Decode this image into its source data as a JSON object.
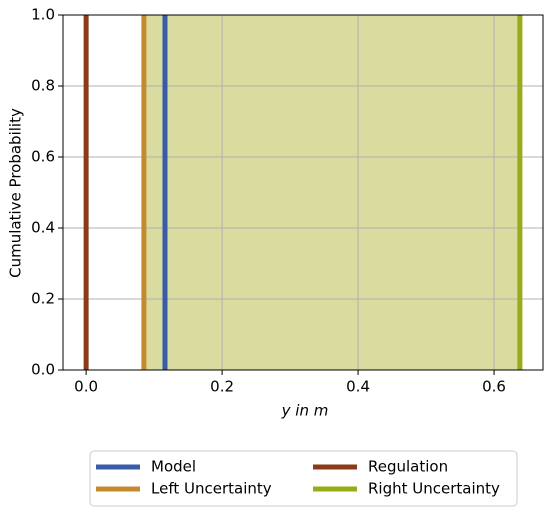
{
  "chart_data": {
    "type": "vline",
    "x_label": "y in m",
    "y_label": "Cumulative Probability",
    "xlim": [
      -0.034,
      0.672
    ],
    "ylim": [
      0,
      1
    ],
    "xticks": [
      {
        "value": 0,
        "label": "0.0"
      },
      0.2,
      0.4,
      0.6
    ],
    "yticks": [
      {
        "value": 0,
        "label": "0.0"
      },
      0.2,
      0.4,
      0.6,
      0.8,
      {
        "value": 1,
        "label": "1.0"
      }
    ],
    "grid": true,
    "legend": "below",
    "span_color": "#d9dc9e",
    "series": [
      {
        "name": "Model",
        "color": "#3a5ba8",
        "values": [
          0.116
        ]
      },
      {
        "name": "Left Uncertainty",
        "color": "#c48a30",
        "values": [
          0.085
        ]
      },
      {
        "name": "Regulation",
        "color": "#8b3a1a",
        "values": [
          0
        ]
      },
      {
        "name": "Right Uncertainty",
        "color": "#9aab1a",
        "values": [
          0.638
        ]
      }
    ]
  }
}
